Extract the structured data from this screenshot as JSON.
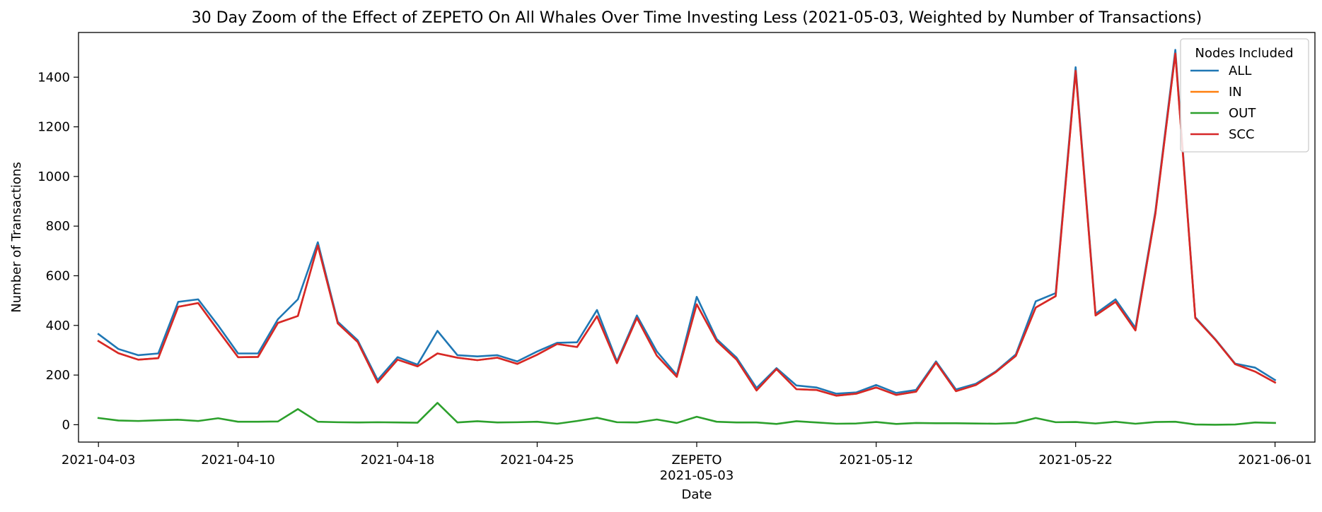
{
  "chart_data": {
    "type": "line",
    "title": "30 Day Zoom of the Effect of ZEPETO On All Whales Over Time Investing Less (2021-05-03, Weighted by Number of Transactions)",
    "xlabel": "Date",
    "ylabel": "Number of Transactions",
    "xlim": [
      "2021-04-02",
      "2021-06-03"
    ],
    "ylim": [
      -70,
      1580
    ],
    "yticks": [
      0,
      200,
      400,
      600,
      800,
      1000,
      1200,
      1400
    ],
    "xticks": [
      {
        "date": "2021-04-03",
        "label": "2021-04-03"
      },
      {
        "date": "2021-04-10",
        "label": "2021-04-10"
      },
      {
        "date": "2021-04-18",
        "label": "2021-04-18"
      },
      {
        "date": "2021-04-25",
        "label": "2021-04-25"
      },
      {
        "date": "2021-05-03",
        "label": "2021-05-03"
      },
      {
        "date": "2021-05-12",
        "label": "2021-05-12"
      },
      {
        "date": "2021-05-22",
        "label": "2021-05-22"
      },
      {
        "date": "2021-06-01",
        "label": "2021-06-01"
      }
    ],
    "event_label": "ZEPETO",
    "event_date": "2021-05-03",
    "legend": {
      "title": "Nodes Included",
      "position": "top-right"
    },
    "x": [
      "2021-04-03",
      "2021-04-04",
      "2021-04-05",
      "2021-04-06",
      "2021-04-07",
      "2021-04-08",
      "2021-04-09",
      "2021-04-10",
      "2021-04-11",
      "2021-04-12",
      "2021-04-13",
      "2021-04-14",
      "2021-04-15",
      "2021-04-16",
      "2021-04-17",
      "2021-04-18",
      "2021-04-19",
      "2021-04-20",
      "2021-04-21",
      "2021-04-22",
      "2021-04-23",
      "2021-04-24",
      "2021-04-25",
      "2021-04-26",
      "2021-04-27",
      "2021-04-28",
      "2021-04-29",
      "2021-04-30",
      "2021-05-01",
      "2021-05-02",
      "2021-05-03",
      "2021-05-04",
      "2021-05-05",
      "2021-05-06",
      "2021-05-07",
      "2021-05-08",
      "2021-05-09",
      "2021-05-10",
      "2021-05-11",
      "2021-05-12",
      "2021-05-13",
      "2021-05-14",
      "2021-05-15",
      "2021-05-16",
      "2021-05-17",
      "2021-05-18",
      "2021-05-19",
      "2021-05-20",
      "2021-05-21",
      "2021-05-22",
      "2021-05-23",
      "2021-05-24",
      "2021-05-25",
      "2021-05-26",
      "2021-05-27",
      "2021-05-28",
      "2021-05-29",
      "2021-05-30",
      "2021-05-31",
      "2021-06-01"
    ],
    "series": [
      {
        "name": "ALL",
        "color": "#1f77b4",
        "values": [
          365,
          305,
          280,
          287,
          495,
          505,
          400,
          287,
          287,
          425,
          505,
          735,
          415,
          340,
          180,
          272,
          242,
          378,
          280,
          275,
          280,
          255,
          295,
          330,
          332,
          462,
          255,
          440,
          295,
          200,
          515,
          345,
          270,
          148,
          228,
          158,
          150,
          125,
          130,
          160,
          128,
          140,
          255,
          142,
          165,
          215,
          283,
          497,
          530,
          1440,
          447,
          505,
          390,
          860,
          1510,
          433,
          345,
          246,
          230,
          180
        ]
      },
      {
        "name": "IN",
        "color": "#ff7f0e",
        "values": [
          337,
          288,
          262,
          268,
          475,
          490,
          380,
          272,
          273,
          410,
          438,
          722,
          408,
          333,
          170,
          262,
          235,
          287,
          270,
          260,
          270,
          245,
          282,
          325,
          313,
          437,
          248,
          430,
          278,
          193,
          485,
          337,
          262,
          138,
          224,
          143,
          140,
          117,
          125,
          150,
          120,
          133,
          250,
          135,
          160,
          212,
          277,
          472,
          518,
          1425,
          440,
          495,
          380,
          850,
          1495,
          430,
          343,
          244,
          214,
          170
        ]
      },
      {
        "name": "OUT",
        "color": "#2ca02c",
        "values": [
          27,
          17,
          15,
          18,
          20,
          15,
          26,
          12,
          12,
          13,
          63,
          12,
          10,
          9,
          10,
          9,
          8,
          88,
          9,
          14,
          9,
          10,
          12,
          4,
          15,
          28,
          10,
          9,
          21,
          7,
          32,
          12,
          9,
          9,
          3,
          14,
          9,
          4,
          5,
          11,
          3,
          7,
          6,
          6,
          5,
          4,
          7,
          27,
          10,
          11,
          5,
          12,
          4,
          11,
          12,
          1,
          0,
          1,
          9,
          7
        ]
      },
      {
        "name": "SCC",
        "color": "#d62728",
        "values": [
          337,
          288,
          262,
          268,
          475,
          490,
          380,
          272,
          273,
          410,
          438,
          722,
          408,
          333,
          170,
          262,
          235,
          287,
          270,
          260,
          270,
          245,
          282,
          325,
          313,
          437,
          248,
          430,
          278,
          193,
          485,
          337,
          262,
          138,
          224,
          143,
          140,
          117,
          125,
          150,
          120,
          133,
          250,
          135,
          160,
          212,
          277,
          472,
          518,
          1425,
          440,
          495,
          380,
          850,
          1495,
          430,
          343,
          244,
          214,
          170
        ]
      }
    ]
  }
}
